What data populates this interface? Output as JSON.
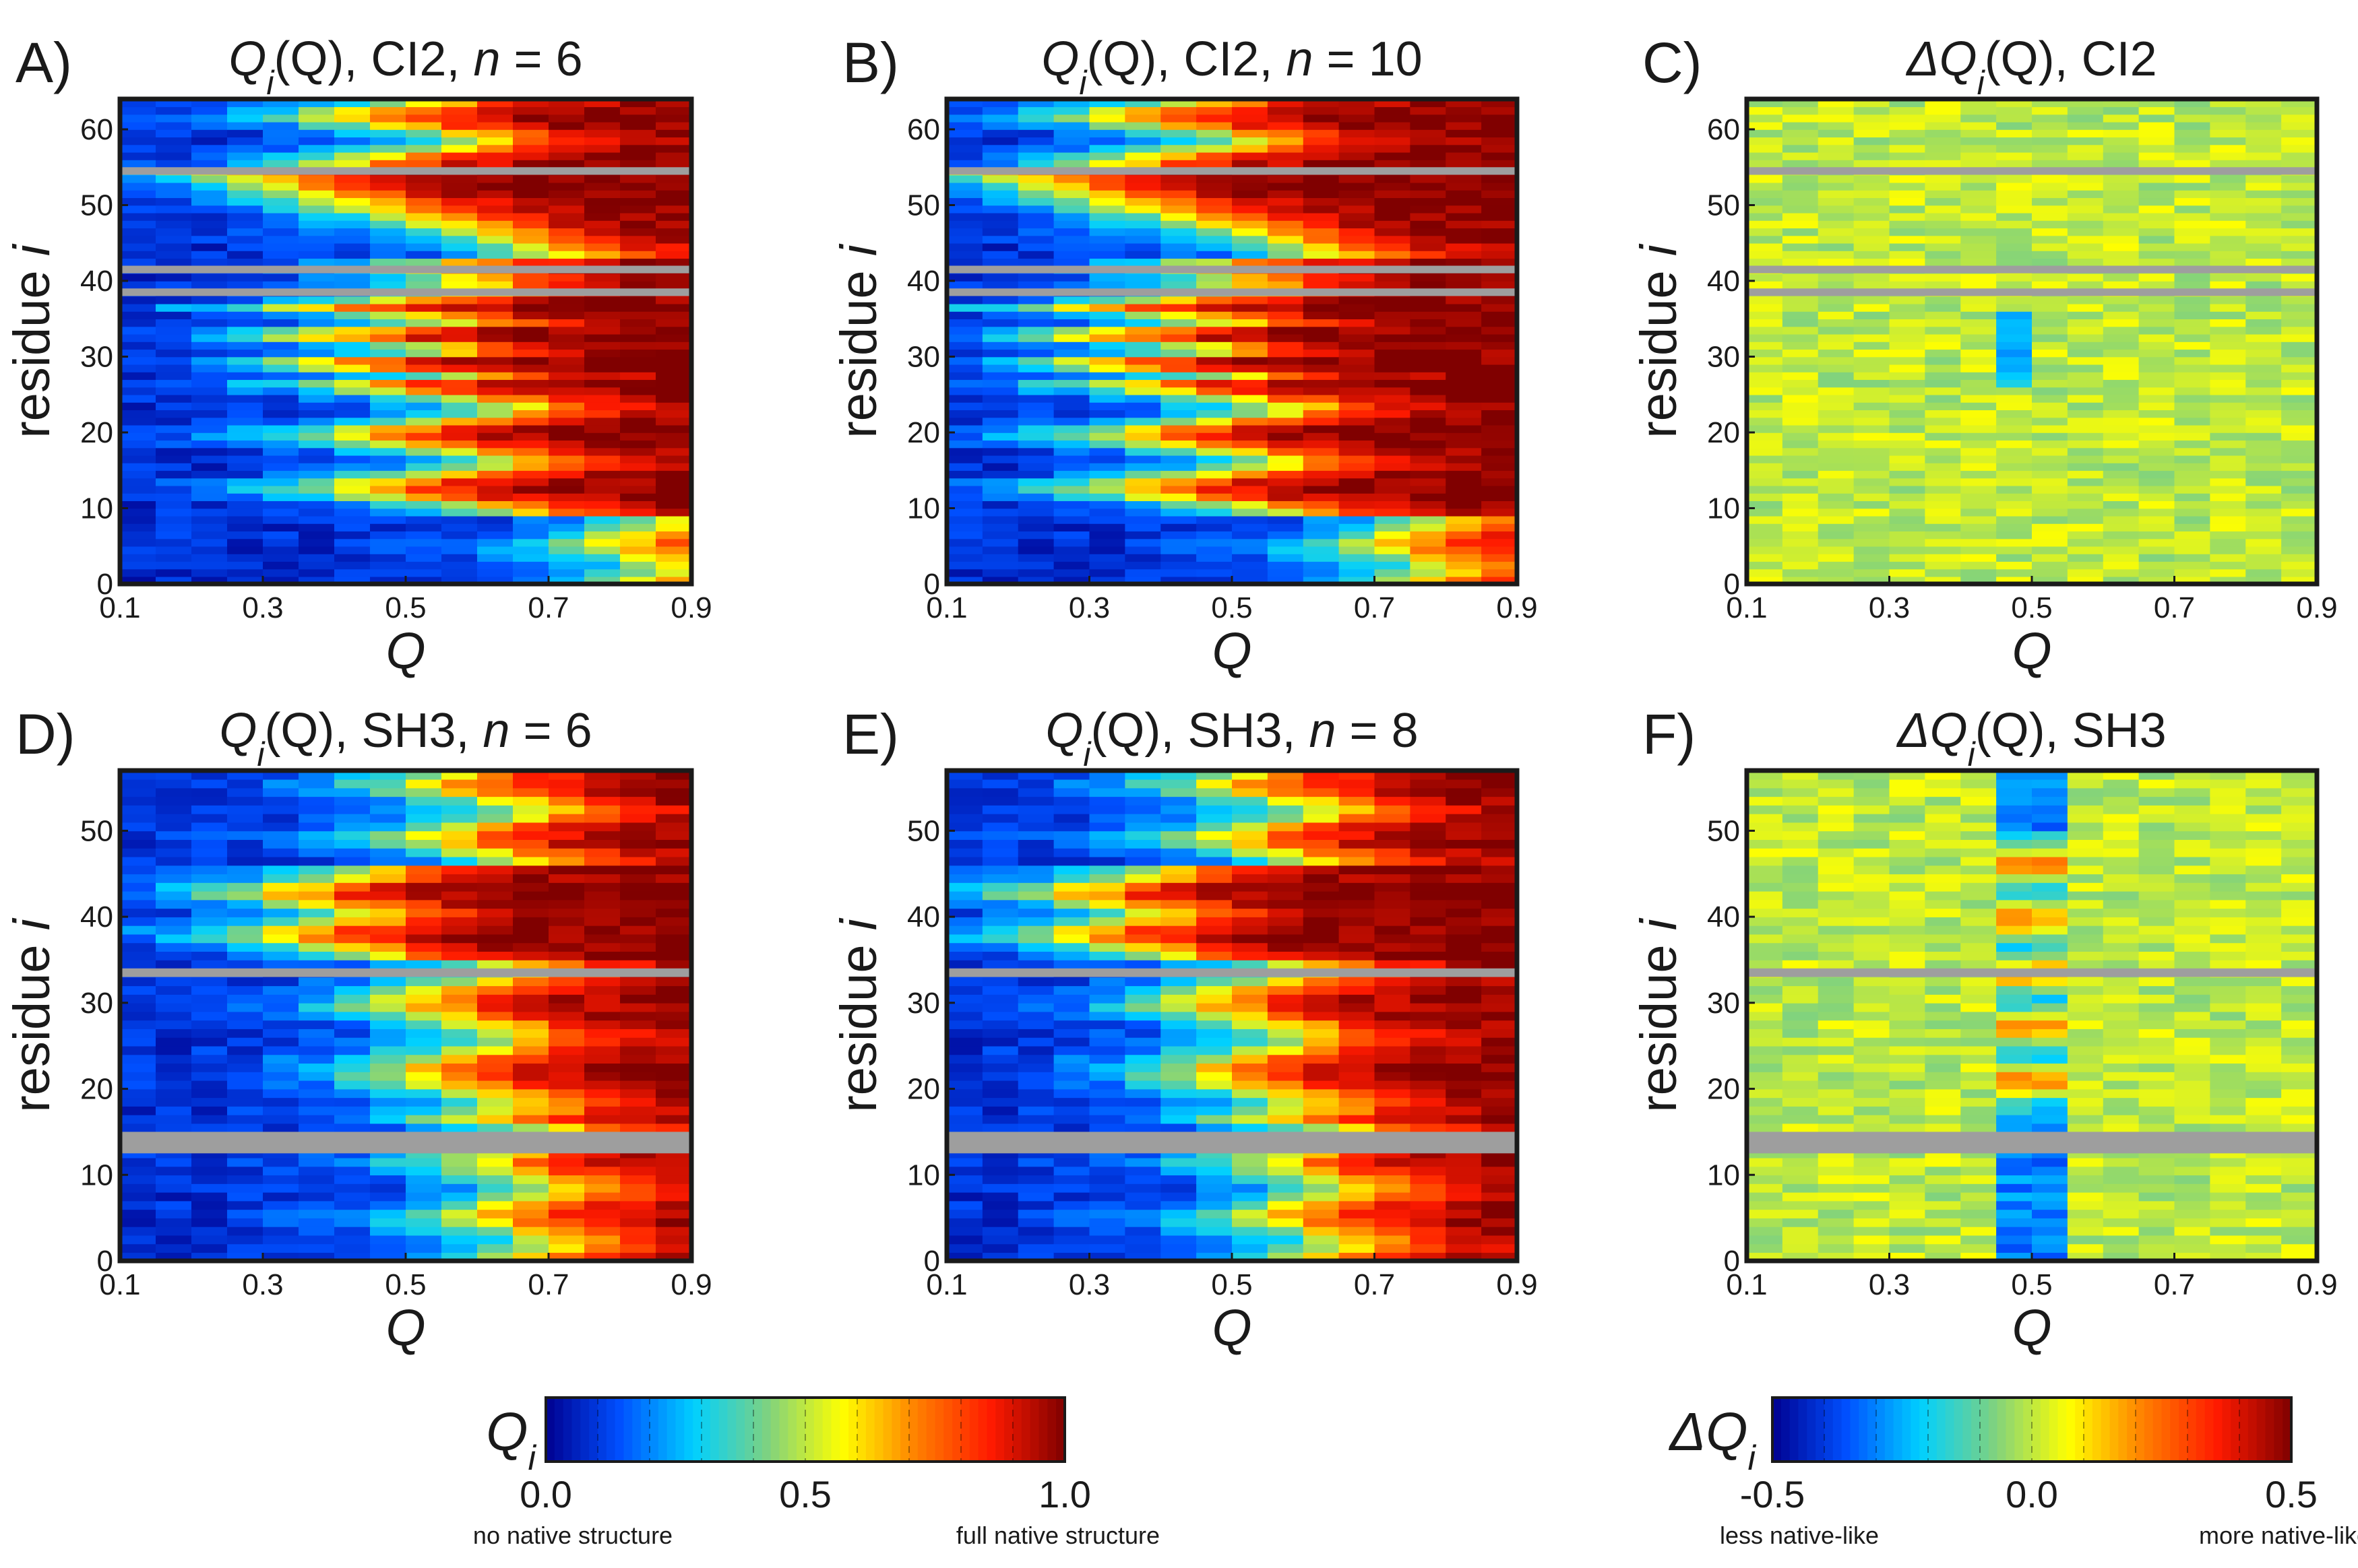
{
  "colors": {
    "colormap": [
      "#00008f",
      "#0050ff",
      "#00d0ff",
      "#7fd27f",
      "#ffff00",
      "#ff8000",
      "#ff1a00",
      "#800000"
    ],
    "gap_row": "#9e9e9e",
    "frame": "#1a1a1a"
  },
  "chart_data": [
    {
      "type": "heatmap",
      "panel": "A)",
      "title": {
        "main": "Q",
        "sub": "i",
        "rest": "(Q), CI2, ",
        "var": "n",
        "eq": " = 6"
      },
      "xlabel": "Q",
      "ylabel": {
        "text": "residue ",
        "var": "i"
      },
      "xlim": [
        0.1,
        0.9
      ],
      "ylim": [
        0,
        64
      ],
      "xticks": [
        "0.1",
        "0.3",
        "0.5",
        "0.7",
        "0.9"
      ],
      "yticks": [
        "0",
        "10",
        "20",
        "30",
        "40",
        "50",
        "60"
      ],
      "ytick_values": [
        0,
        10,
        20,
        30,
        40,
        50,
        60
      ],
      "value_range": [
        0,
        1
      ],
      "gap_residues": [
        [
          38,
          39
        ],
        [
          41,
          42
        ],
        [
          54,
          55
        ]
      ],
      "pattern": "ci2",
      "shift": 0.08
    },
    {
      "type": "heatmap",
      "panel": "B)",
      "title": {
        "main": "Q",
        "sub": "i",
        "rest": "(Q), CI2, ",
        "var": "n",
        "eq": " = 10"
      },
      "xlabel": "Q",
      "ylabel": {
        "text": "residue ",
        "var": "i"
      },
      "xlim": [
        0.1,
        0.9
      ],
      "ylim": [
        0,
        64
      ],
      "xticks": [
        "0.1",
        "0.3",
        "0.5",
        "0.7",
        "0.9"
      ],
      "yticks": [
        "0",
        "10",
        "20",
        "30",
        "40",
        "50",
        "60"
      ],
      "ytick_values": [
        0,
        10,
        20,
        30,
        40,
        50,
        60
      ],
      "value_range": [
        0,
        1
      ],
      "gap_residues": [
        [
          38,
          39
        ],
        [
          41,
          42
        ],
        [
          54,
          55
        ]
      ],
      "pattern": "ci2",
      "shift": 0.0
    },
    {
      "type": "heatmap",
      "panel": "C)",
      "title": {
        "main": "ΔQ",
        "sub": "i",
        "rest": "(Q), CI2",
        "var": "",
        "eq": ""
      },
      "xlabel": "Q",
      "ylabel": {
        "text": "residue ",
        "var": "i"
      },
      "xlim": [
        0.1,
        0.9
      ],
      "ylim": [
        0,
        64
      ],
      "xticks": [
        "0.1",
        "0.3",
        "0.5",
        "0.7",
        "0.9"
      ],
      "yticks": [
        "0",
        "10",
        "20",
        "30",
        "40",
        "50",
        "60"
      ],
      "ytick_values": [
        0,
        10,
        20,
        30,
        40,
        50,
        60
      ],
      "value_range": [
        -0.5,
        0.5
      ],
      "gap_residues": [
        [
          38,
          39
        ],
        [
          41,
          42
        ],
        [
          54,
          55
        ]
      ],
      "pattern": "delta_ci2",
      "shift": 0.0
    },
    {
      "type": "heatmap",
      "panel": "D)",
      "title": {
        "main": "Q",
        "sub": "i",
        "rest": "(Q), SH3, ",
        "var": "n",
        "eq": " = 6"
      },
      "xlabel": "Q",
      "ylabel": {
        "text": "residue ",
        "var": "i"
      },
      "xlim": [
        0.1,
        0.9
      ],
      "ylim": [
        0,
        57
      ],
      "xticks": [
        "0.1",
        "0.3",
        "0.5",
        "0.7",
        "0.9"
      ],
      "yticks": [
        "0",
        "10",
        "20",
        "30",
        "40",
        "50"
      ],
      "ytick_values": [
        0,
        10,
        20,
        30,
        40,
        50
      ],
      "value_range": [
        0,
        1
      ],
      "gap_residues": [
        [
          12.5,
          15
        ],
        [
          33,
          34
        ]
      ],
      "pattern": "sh3",
      "shift": 0.05
    },
    {
      "type": "heatmap",
      "panel": "E)",
      "title": {
        "main": "Q",
        "sub": "i",
        "rest": "(Q), SH3, ",
        "var": "n",
        "eq": " = 8"
      },
      "xlabel": "Q",
      "ylabel": {
        "text": "residue ",
        "var": "i"
      },
      "xlim": [
        0.1,
        0.9
      ],
      "ylim": [
        0,
        57
      ],
      "xticks": [
        "0.1",
        "0.3",
        "0.5",
        "0.7",
        "0.9"
      ],
      "yticks": [
        "0",
        "10",
        "20",
        "30",
        "40",
        "50"
      ],
      "ytick_values": [
        0,
        10,
        20,
        30,
        40,
        50
      ],
      "value_range": [
        0,
        1
      ],
      "gap_residues": [
        [
          12.5,
          15
        ],
        [
          33,
          34
        ]
      ],
      "pattern": "sh3",
      "shift": 0.0
    },
    {
      "type": "heatmap",
      "panel": "F)",
      "title": {
        "main": "ΔQ",
        "sub": "i",
        "rest": "(Q), SH3",
        "var": "",
        "eq": ""
      },
      "xlabel": "Q",
      "ylabel": {
        "text": "residue ",
        "var": "i"
      },
      "xlim": [
        0.1,
        0.9
      ],
      "ylim": [
        0,
        57
      ],
      "xticks": [
        "0.1",
        "0.3",
        "0.5",
        "0.7",
        "0.9"
      ],
      "yticks": [
        "0",
        "10",
        "20",
        "30",
        "40",
        "50"
      ],
      "ytick_values": [
        0,
        10,
        20,
        30,
        40,
        50
      ],
      "value_range": [
        -0.5,
        0.5
      ],
      "gap_residues": [
        [
          12.5,
          15
        ],
        [
          33,
          34
        ]
      ],
      "pattern": "delta_sh3",
      "shift": 0.0
    }
  ],
  "colorbars": [
    {
      "symbol": {
        "main": "Q",
        "sub": "i"
      },
      "ticks": [
        "0.0",
        "0.5",
        "1.0"
      ],
      "range": [
        0,
        1
      ],
      "left_note": "no native structure",
      "right_note": "full native structure"
    },
    {
      "symbol": {
        "main": "ΔQ",
        "sub": "i"
      },
      "ticks": [
        "-0.5",
        "0.0",
        "0.5"
      ],
      "range": [
        -0.5,
        0.5
      ],
      "left_note": "less native-like",
      "right_note": "more native-like"
    }
  ]
}
